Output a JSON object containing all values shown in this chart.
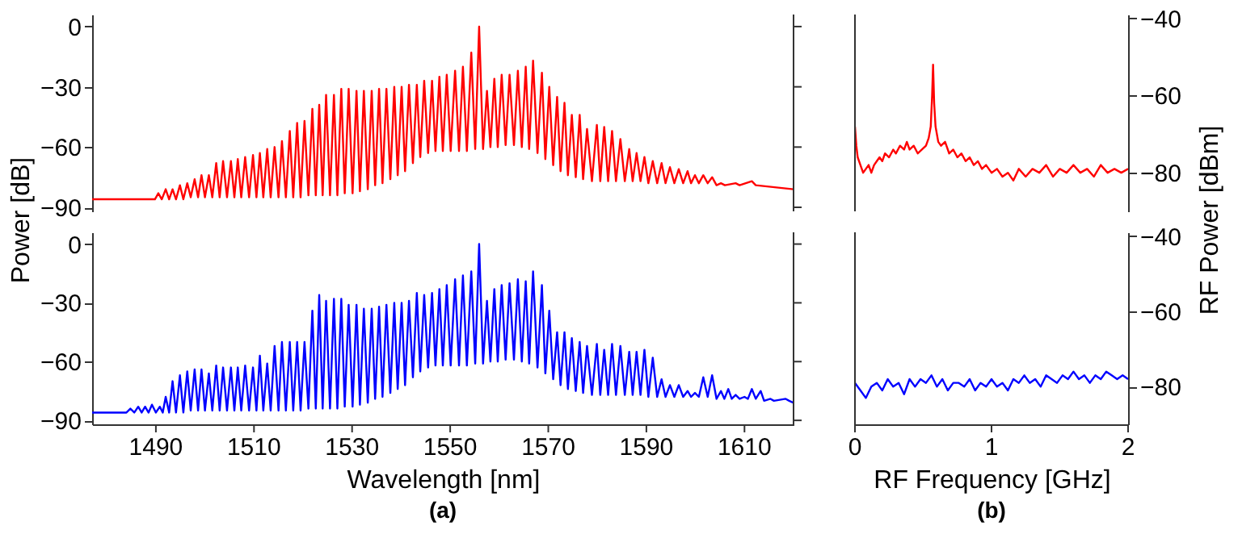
{
  "chart_data": [
    {
      "type": "line",
      "ylabel": "Power [dB]",
      "xlim": [
        1477,
        1620
      ],
      "ylim": [
        -92,
        6
      ],
      "yticks": [
        0,
        -30,
        -60,
        -90
      ],
      "tick_labels": "y",
      "series": [
        {
          "color": "#ff0000",
          "x": [
            1477,
            1489.8,
            1490.5,
            1491.2,
            1492.0,
            1492.7,
            1493.4,
            1494.1,
            1494.9,
            1495.6,
            1496.4,
            1497.1,
            1497.9,
            1498.6,
            1499.3,
            1500.0,
            1500.8,
            1501.5,
            1502.3,
            1503.0,
            1503.7,
            1504.5,
            1505.3,
            1506.0,
            1506.7,
            1507.4,
            1508.2,
            1509.0,
            1509.8,
            1510.5,
            1511.2,
            1511.9,
            1512.7,
            1513.4,
            1514.2,
            1515.0,
            1515.7,
            1516.5,
            1517.3,
            1518.0,
            1518.8,
            1519.5,
            1520.3,
            1521.1,
            1521.9,
            1522.6,
            1523.3,
            1524.0,
            1524.7,
            1525.5,
            1526.3,
            1527.0,
            1527.8,
            1528.5,
            1529.3,
            1530.1,
            1530.9,
            1531.6,
            1532.4,
            1533.2,
            1534.0,
            1534.7,
            1535.5,
            1536.2,
            1537.0,
            1537.8,
            1538.6,
            1539.3,
            1540.1,
            1540.8,
            1541.6,
            1542.4,
            1543.2,
            1543.9,
            1544.7,
            1545.5,
            1546.3,
            1547.0,
            1547.8,
            1548.5,
            1549.3,
            1550.1,
            1551.0,
            1551.8,
            1552.6,
            1553.4,
            1554.3,
            1555.1,
            1555.9,
            1556.7,
            1557.5,
            1558.2,
            1559.0,
            1559.7,
            1560.5,
            1561.3,
            1562.1,
            1563.0,
            1563.8,
            1564.6,
            1565.4,
            1566.1,
            1566.9,
            1567.8,
            1568.7,
            1569.4,
            1570.2,
            1571.0,
            1571.8,
            1572.5,
            1573.3,
            1574.0,
            1574.8,
            1575.6,
            1576.4,
            1577.1,
            1577.9,
            1578.9,
            1579.9,
            1580.6,
            1581.4,
            1582.2,
            1583.0,
            1583.8,
            1584.7,
            1585.6,
            1586.5,
            1587.2,
            1588.0,
            1588.8,
            1589.6,
            1590.4,
            1591.3,
            1592.2,
            1593.1,
            1593.9,
            1594.8,
            1595.7,
            1596.6,
            1597.5,
            1598.4,
            1599.1,
            1599.9,
            1600.7,
            1601.6,
            1602.5,
            1603.4,
            1604.3,
            1605.2,
            1606.0,
            1608.2,
            1609.0,
            1611.5,
            1612.3,
            1620
          ],
          "values": [
            -86,
            -86,
            -83,
            -86,
            -81,
            -86,
            -81,
            -86,
            -79,
            -86,
            -78,
            -85,
            -76,
            -85,
            -74,
            -85,
            -74,
            -85,
            -68,
            -85,
            -67,
            -85,
            -67,
            -85,
            -66,
            -85,
            -65,
            -85,
            -64,
            -85,
            -63,
            -85,
            -61,
            -85,
            -60,
            -85,
            -57,
            -85,
            -52,
            -85,
            -48,
            -85,
            -47,
            -84,
            -41,
            -84,
            -39,
            -84,
            -34,
            -84,
            -34,
            -84,
            -31,
            -83,
            -31,
            -83,
            -32,
            -82,
            -32,
            -81,
            -32,
            -79,
            -31,
            -78,
            -31,
            -76,
            -30,
            -74,
            -30,
            -72,
            -29,
            -68,
            -29,
            -65,
            -27,
            -63,
            -27,
            -62,
            -25,
            -62,
            -24,
            -62,
            -22,
            -62,
            -20,
            -62,
            -13,
            -61,
            0,
            -61,
            -32,
            -60,
            -26,
            -60,
            -24,
            -59,
            -24,
            -59,
            -22,
            -60,
            -20,
            -61,
            -17,
            -63,
            -23,
            -66,
            -30,
            -69,
            -35,
            -72,
            -38,
            -74,
            -44,
            -75,
            -44,
            -76,
            -51,
            -77,
            -49,
            -77,
            -50,
            -77,
            -52,
            -77,
            -56,
            -77,
            -61,
            -77,
            -63,
            -77,
            -65,
            -78,
            -67,
            -78,
            -68,
            -78,
            -70,
            -78,
            -71,
            -78,
            -72,
            -78,
            -74,
            -78,
            -74,
            -78,
            -75,
            -79,
            -78,
            -79,
            -78,
            -79,
            -77,
            -79,
            -81
          ]
        }
      ]
    },
    {
      "type": "line",
      "y2label": "RF Power [dBm]",
      "xlim": [
        0,
        2
      ],
      "y2lim": [
        -90,
        -39
      ],
      "y2ticks": [
        -40,
        -60,
        -80
      ],
      "tick_labels": "y",
      "series": [
        {
          "color": "#ff0000",
          "axis": "y2",
          "x": [
            0,
            0.01,
            0.02,
            0.04,
            0.06,
            0.08,
            0.1,
            0.12,
            0.14,
            0.16,
            0.18,
            0.2,
            0.22,
            0.25,
            0.28,
            0.3,
            0.33,
            0.36,
            0.38,
            0.4,
            0.43,
            0.46,
            0.49,
            0.52,
            0.54,
            0.555,
            0.565,
            0.572,
            0.58,
            0.59,
            0.61,
            0.63,
            0.66,
            0.69,
            0.72,
            0.75,
            0.78,
            0.81,
            0.84,
            0.87,
            0.9,
            0.93,
            0.96,
            1.0,
            1.04,
            1.08,
            1.12,
            1.16,
            1.2,
            1.25,
            1.3,
            1.35,
            1.4,
            1.45,
            1.5,
            1.55,
            1.6,
            1.65,
            1.7,
            1.75,
            1.8,
            1.85,
            1.9,
            1.95,
            2.0
          ],
          "values": [
            -68,
            -73,
            -76,
            -78,
            -80,
            -79,
            -78,
            -80,
            -78,
            -77,
            -76,
            -77,
            -75,
            -76,
            -74,
            -75,
            -73,
            -74,
            -72,
            -74,
            -73,
            -75,
            -74,
            -73,
            -71,
            -68,
            -60,
            -52,
            -62,
            -68,
            -72,
            -73,
            -72,
            -75,
            -74,
            -76,
            -75,
            -77,
            -76,
            -78,
            -77,
            -79,
            -78,
            -80,
            -79,
            -81,
            -80,
            -82,
            -79,
            -81,
            -79,
            -80,
            -78,
            -81,
            -79,
            -80,
            -78,
            -80,
            -79,
            -81,
            -78,
            -80,
            -79,
            -80,
            -79
          ]
        }
      ]
    },
    {
      "type": "line",
      "xlabel": "Wavelength [nm]",
      "annotations": [
        "(a)"
      ],
      "xlim": [
        1477,
        1620
      ],
      "xticks": [
        1490,
        1510,
        1530,
        1550,
        1570,
        1590,
        1610
      ],
      "ylim": [
        -92,
        6
      ],
      "yticks": [
        0,
        -30,
        -60,
        -90
      ],
      "series": [
        {
          "color": "#0000ff",
          "x": [
            1477,
            1484.0,
            1484.8,
            1485.6,
            1486.4,
            1487.1,
            1487.8,
            1488.5,
            1489.2,
            1490.0,
            1490.8,
            1491.4,
            1492.0,
            1492.7,
            1493.4,
            1494.1,
            1494.9,
            1495.6,
            1496.4,
            1497.1,
            1497.9,
            1498.6,
            1499.3,
            1500.0,
            1500.8,
            1501.5,
            1502.3,
            1503.0,
            1503.7,
            1504.5,
            1505.3,
            1506.0,
            1506.7,
            1507.4,
            1508.2,
            1509.0,
            1509.8,
            1510.5,
            1511.2,
            1511.9,
            1512.7,
            1513.4,
            1514.2,
            1515.0,
            1515.7,
            1516.5,
            1517.3,
            1518.0,
            1518.8,
            1519.5,
            1520.3,
            1521.1,
            1521.9,
            1522.6,
            1523.3,
            1524.0,
            1524.7,
            1525.5,
            1526.3,
            1527.0,
            1527.8,
            1528.5,
            1529.3,
            1530.1,
            1530.9,
            1531.6,
            1532.4,
            1533.2,
            1534.0,
            1534.7,
            1535.5,
            1536.2,
            1537.0,
            1537.8,
            1538.6,
            1539.3,
            1540.1,
            1540.8,
            1541.6,
            1542.4,
            1543.2,
            1543.9,
            1544.7,
            1545.5,
            1546.3,
            1547.0,
            1547.8,
            1548.5,
            1549.3,
            1550.1,
            1551.0,
            1551.8,
            1552.6,
            1553.4,
            1554.3,
            1555.1,
            1555.9,
            1556.7,
            1557.5,
            1558.2,
            1559.0,
            1559.7,
            1560.5,
            1561.3,
            1562.1,
            1563.0,
            1563.8,
            1564.6,
            1565.4,
            1566.1,
            1566.9,
            1567.8,
            1568.7,
            1569.4,
            1570.2,
            1571.0,
            1571.8,
            1572.5,
            1573.3,
            1574.0,
            1574.8,
            1575.6,
            1576.4,
            1577.1,
            1577.9,
            1578.9,
            1579.9,
            1580.6,
            1581.4,
            1582.2,
            1583.0,
            1583.8,
            1584.7,
            1585.6,
            1586.5,
            1587.2,
            1588.0,
            1588.8,
            1589.6,
            1590.4,
            1591.3,
            1592.2,
            1593.1,
            1593.9,
            1594.8,
            1595.7,
            1596.6,
            1597.5,
            1598.4,
            1599.1,
            1599.9,
            1600.7,
            1601.6,
            1602.5,
            1603.4,
            1604.3,
            1605.2,
            1605.9,
            1606.7,
            1607.4,
            1608.2,
            1609.0,
            1610.0,
            1610.7,
            1611.5,
            1612.3,
            1613.3,
            1614.0,
            1615.3,
            1616.0,
            1618.4,
            1619.1,
            1620
          ],
          "values": [
            -86,
            -86,
            -84,
            -86,
            -83,
            -86,
            -83,
            -86,
            -82,
            -86,
            -83,
            -86,
            -78,
            -86,
            -70,
            -86,
            -67,
            -86,
            -65,
            -85,
            -64,
            -85,
            -64,
            -85,
            -66,
            -85,
            -62,
            -85,
            -63,
            -85,
            -63,
            -85,
            -63,
            -85,
            -62,
            -85,
            -63,
            -85,
            -57,
            -85,
            -61,
            -85,
            -52,
            -85,
            -50,
            -85,
            -50,
            -85,
            -50,
            -85,
            -50,
            -84,
            -34,
            -84,
            -26,
            -84,
            -29,
            -84,
            -28,
            -84,
            -28,
            -83,
            -31,
            -83,
            -31,
            -82,
            -33,
            -81,
            -33,
            -79,
            -32,
            -78,
            -31,
            -76,
            -30,
            -74,
            -30,
            -72,
            -29,
            -68,
            -25,
            -65,
            -26,
            -63,
            -25,
            -62,
            -23,
            -62,
            -21,
            -62,
            -18,
            -62,
            -16,
            -62,
            -14,
            -61,
            0,
            -61,
            -29,
            -60,
            -23,
            -60,
            -21,
            -59,
            -20,
            -59,
            -18,
            -60,
            -19,
            -61,
            -14,
            -63,
            -21,
            -66,
            -34,
            -69,
            -45,
            -72,
            -45,
            -74,
            -48,
            -75,
            -50,
            -76,
            -52,
            -77,
            -51,
            -77,
            -54,
            -77,
            -51,
            -77,
            -52,
            -77,
            -55,
            -77,
            -55,
            -77,
            -54,
            -78,
            -58,
            -78,
            -69,
            -78,
            -72,
            -78,
            -72,
            -78,
            -75,
            -78,
            -76,
            -78,
            -68,
            -78,
            -67,
            -79,
            -75,
            -79,
            -74,
            -79,
            -77,
            -79,
            -78,
            -79,
            -74,
            -79,
            -75,
            -80,
            -79,
            -80,
            -79,
            -80,
            -81
          ]
        }
      ]
    },
    {
      "type": "line",
      "xlabel": "RF Frequency [GHz]",
      "annotations": [
        "(b)"
      ],
      "xlim": [
        0,
        2
      ],
      "xticks": [
        0,
        1,
        2
      ],
      "y2lim": [
        -90,
        -39
      ],
      "y2ticks": [
        -40,
        -60,
        -80
      ],
      "series": [
        {
          "color": "#0000ff",
          "axis": "y2",
          "x": [
            0,
            0.04,
            0.08,
            0.12,
            0.16,
            0.2,
            0.24,
            0.28,
            0.32,
            0.36,
            0.4,
            0.44,
            0.48,
            0.52,
            0.56,
            0.6,
            0.64,
            0.68,
            0.72,
            0.76,
            0.8,
            0.84,
            0.88,
            0.92,
            0.96,
            1.0,
            1.04,
            1.08,
            1.12,
            1.16,
            1.2,
            1.24,
            1.28,
            1.32,
            1.36,
            1.4,
            1.44,
            1.48,
            1.52,
            1.56,
            1.6,
            1.64,
            1.68,
            1.72,
            1.76,
            1.8,
            1.84,
            1.88,
            1.92,
            1.96,
            2.0
          ],
          "values": [
            -79,
            -81,
            -83,
            -80,
            -79,
            -81,
            -78,
            -80,
            -79,
            -82,
            -78,
            -80,
            -78,
            -79,
            -77,
            -80,
            -78,
            -81,
            -79,
            -79,
            -80,
            -78,
            -81,
            -79,
            -80,
            -78,
            -80,
            -79,
            -81,
            -78,
            -79,
            -77,
            -79,
            -78,
            -80,
            -77,
            -78,
            -79,
            -77,
            -78,
            -76,
            -78,
            -77,
            -79,
            -77,
            -78,
            -76,
            -77,
            -78,
            -77,
            -78
          ]
        }
      ]
    }
  ]
}
